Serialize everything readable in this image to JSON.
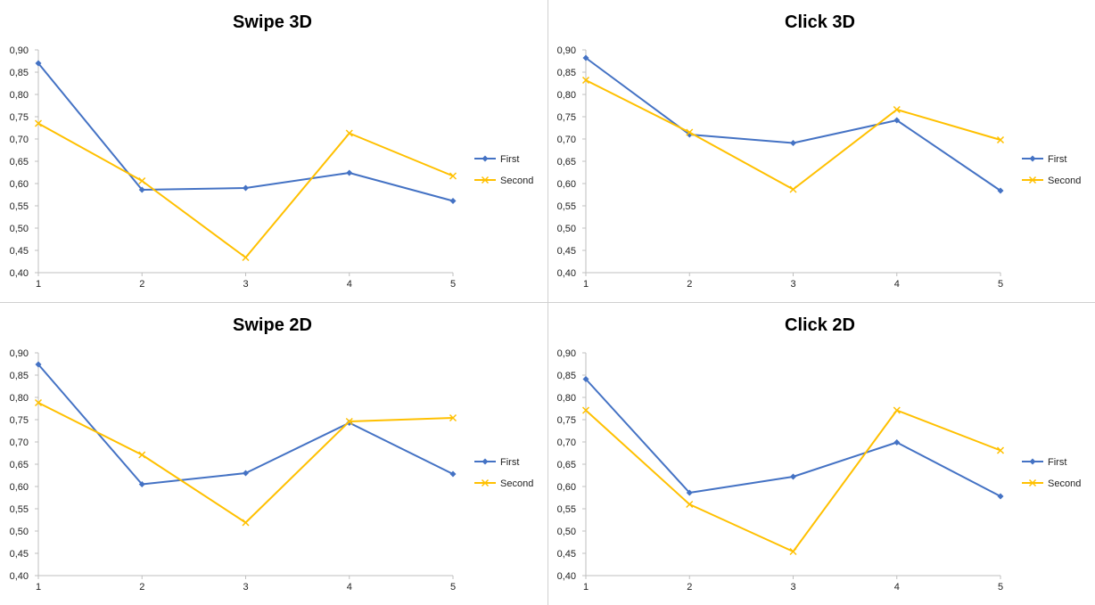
{
  "colors": {
    "first": "#4472C4",
    "second": "#FFC000",
    "axis": "#bfbfbf"
  },
  "chart_data": [
    {
      "type": "line",
      "title": "Swipe 3D",
      "categories": [
        "1",
        "2",
        "3",
        "4",
        "5"
      ],
      "ylim": [
        0.4,
        0.9
      ],
      "yticks": [
        "0,40",
        "0,45",
        "0,50",
        "0,55",
        "0,60",
        "0,65",
        "0,70",
        "0,75",
        "0,80",
        "0,85",
        "0,90"
      ],
      "legend": "right",
      "series": [
        {
          "name": "First",
          "values": [
            0.87,
            0.586,
            0.59,
            0.624,
            0.561
          ]
        },
        {
          "name": "Second",
          "values": [
            0.735,
            0.606,
            0.434,
            0.713,
            0.617
          ]
        }
      ]
    },
    {
      "type": "line",
      "title": "Click 3D",
      "categories": [
        "1",
        "2",
        "3",
        "4",
        "5"
      ],
      "ylim": [
        0.4,
        0.9
      ],
      "yticks": [
        "0,40",
        "0,45",
        "0,50",
        "0,55",
        "0,60",
        "0,65",
        "0,70",
        "0,75",
        "0,80",
        "0,85",
        "0,90"
      ],
      "legend": "right",
      "series": [
        {
          "name": "First",
          "values": [
            0.882,
            0.71,
            0.691,
            0.742,
            0.584
          ]
        },
        {
          "name": "Second",
          "values": [
            0.832,
            0.715,
            0.587,
            0.766,
            0.698
          ]
        }
      ]
    },
    {
      "type": "line",
      "title": "Swipe 2D",
      "categories": [
        "1",
        "2",
        "3",
        "4",
        "5"
      ],
      "ylim": [
        0.4,
        0.9
      ],
      "yticks": [
        "0,40",
        "0,45",
        "0,50",
        "0,55",
        "0,60",
        "0,65",
        "0,70",
        "0,75",
        "0,80",
        "0,85",
        "0,90"
      ],
      "legend": "right",
      "series": [
        {
          "name": "First",
          "values": [
            0.874,
            0.605,
            0.63,
            0.743,
            0.628
          ]
        },
        {
          "name": "Second",
          "values": [
            0.788,
            0.671,
            0.519,
            0.746,
            0.754
          ]
        }
      ]
    },
    {
      "type": "line",
      "title": "Click 2D",
      "categories": [
        "1",
        "2",
        "3",
        "4",
        "5"
      ],
      "ylim": [
        0.4,
        0.9
      ],
      "yticks": [
        "0,40",
        "0,45",
        "0,50",
        "0,55",
        "0,60",
        "0,65",
        "0,70",
        "0,75",
        "0,80",
        "0,85",
        "0,90"
      ],
      "legend": "right",
      "series": [
        {
          "name": "First",
          "values": [
            0.841,
            0.586,
            0.622,
            0.699,
            0.578
          ]
        },
        {
          "name": "Second",
          "values": [
            0.771,
            0.56,
            0.454,
            0.771,
            0.681
          ]
        }
      ]
    }
  ]
}
